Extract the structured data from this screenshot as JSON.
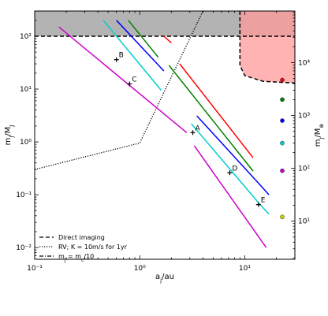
{
  "chart_data": {
    "type": "line",
    "xscale": "log",
    "yscale": "log",
    "xlim": [
      0.1,
      30
    ],
    "ylim": [
      0.006,
      300
    ],
    "y2lim_mearth": [
      1.9,
      95000
    ],
    "xlabel": "a_j/au",
    "ylabel": "m_j/M_J",
    "y2label": "m_j/M_⊕",
    "x_ticks": [
      {
        "v": 0.1,
        "label": "10⁻¹"
      },
      {
        "v": 1,
        "label": "10⁰"
      },
      {
        "v": 10,
        "label": "10¹"
      }
    ],
    "y_ticks": [
      {
        "v": 0.01,
        "label": "10⁻²"
      },
      {
        "v": 0.1,
        "label": "10⁻¹"
      },
      {
        "v": 1,
        "label": "10⁰"
      },
      {
        "v": 10,
        "label": "10¹"
      },
      {
        "v": 100,
        "label": "10²"
      }
    ],
    "y2_ticks": [
      {
        "v": 10,
        "label": "10¹"
      },
      {
        "v": 100,
        "label": "10²"
      },
      {
        "v": 1000,
        "label": "10³"
      },
      {
        "v": 10000,
        "label": "10⁴"
      }
    ],
    "shaded_regions": [
      {
        "name": "mass-limit",
        "color": "#999999",
        "x": [
          0.1,
          30
        ],
        "y": [
          100,
          300
        ]
      },
      {
        "name": "direct-imaging",
        "color": "#ff9999",
        "boundary": [
          [
            9,
            300
          ],
          [
            9,
            28
          ],
          [
            10,
            18
          ],
          [
            15,
            14
          ],
          [
            30,
            13
          ]
        ]
      }
    ],
    "reference_lines": [
      {
        "name": "Direct imaging",
        "style": "dashed",
        "color": "#000000",
        "points": [
          [
            9,
            300
          ],
          [
            9,
            28
          ],
          [
            10,
            18
          ],
          [
            15,
            14
          ],
          [
            30,
            13
          ]
        ]
      },
      {
        "name": "Direct imaging",
        "style": "dashed",
        "color": "#000000",
        "points": [
          [
            0.1,
            100
          ],
          [
            30,
            100
          ]
        ]
      },
      {
        "name": "RV; K=10m/s for 1yr",
        "style": "dotted",
        "color": "#000000",
        "points": [
          [
            0.1,
            0.3
          ],
          [
            1,
            0.95
          ],
          [
            4,
            300
          ]
        ]
      }
    ],
    "series": [
      {
        "color": "#ff0000",
        "segments": [
          [
            [
              1.7,
              100
            ],
            [
              2.0,
              75
            ]
          ],
          [
            [
              2.4,
              30
            ],
            [
              12,
              0.5
            ]
          ]
        ]
      },
      {
        "color": "#008000",
        "segments": [
          [
            [
              0.78,
              200
            ],
            [
              1.5,
              40
            ]
          ],
          [
            [
              1.9,
              28
            ],
            [
              12,
              0.28
            ]
          ]
        ]
      },
      {
        "color": "#0000ff",
        "segments": [
          [
            [
              0.6,
              200
            ],
            [
              1.7,
              22
            ]
          ],
          [
            [
              3.5,
              3.1
            ],
            [
              13,
              0.18
            ],
            [
              17,
              0.1
            ]
          ]
        ]
      },
      {
        "color": "#00cccc",
        "segments": [
          [
            [
              0.45,
              200
            ],
            [
              1.6,
              9.5
            ]
          ],
          [
            [
              3.1,
              2.2
            ],
            [
              14,
              0.065
            ],
            [
              17,
              0.043
            ]
          ]
        ]
      },
      {
        "color": "#cc00cc",
        "segments": [
          [
            [
              0.17,
              150
            ],
            [
              2.8,
              1.5
            ]
          ],
          [
            [
              3.3,
              0.85
            ],
            [
              16,
              0.01
            ]
          ]
        ]
      }
    ],
    "points": [
      {
        "label": "A",
        "x": 3.2,
        "y": 1.5
      },
      {
        "label": "B",
        "x": 0.6,
        "y": 36
      },
      {
        "label": "C",
        "x": 0.8,
        "y": 12.5
      },
      {
        "label": "D",
        "x": 7.2,
        "y": 0.26
      },
      {
        "label": "E",
        "x": 13.5,
        "y": 0.065
      }
    ],
    "marker_dots": [
      {
        "color": "#ff0000",
        "m_earth": 4700
      },
      {
        "color": "#008000",
        "m_earth": 2000
      },
      {
        "color": "#0000ff",
        "m_earth": 800
      },
      {
        "color": "#00cccc",
        "m_earth": 300
      },
      {
        "color": "#cc00cc",
        "m_earth": 90
      },
      {
        "color": "#cccc00",
        "m_earth": 12
      }
    ],
    "legend": {
      "placement": "lower-left",
      "entries": [
        {
          "label": "Direct imaging",
          "style": "dashed"
        },
        {
          "label": "RV;  K = 10m/s for 1yr",
          "style": "dotted"
        },
        {
          "label": "m_j = m_c/10",
          "style": "dashdot"
        }
      ]
    }
  }
}
